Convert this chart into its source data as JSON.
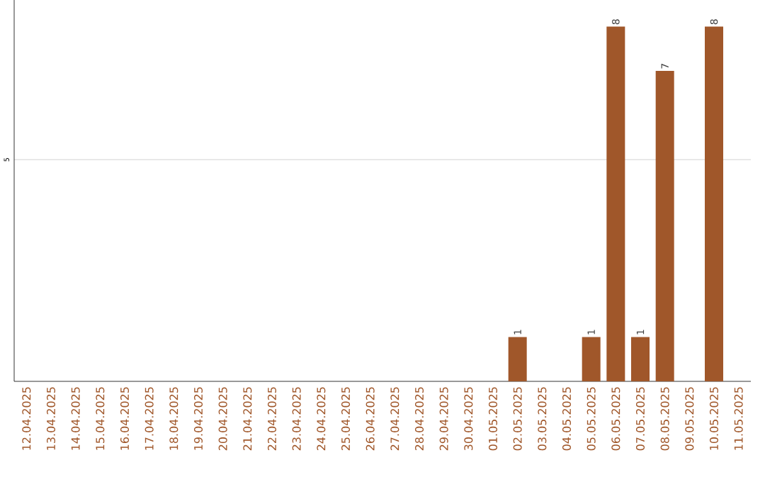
{
  "chart_data": {
    "type": "bar",
    "categories": [
      "12.04.2025",
      "13.04.2025",
      "14.04.2025",
      "15.04.2025",
      "16.04.2025",
      "17.04.2025",
      "18.04.2025",
      "19.04.2025",
      "20.04.2025",
      "21.04.2025",
      "22.04.2025",
      "23.04.2025",
      "24.04.2025",
      "25.04.2025",
      "26.04.2025",
      "27.04.2025",
      "28.04.2025",
      "29.04.2025",
      "30.04.2025",
      "01.05.2025",
      "02.05.2025",
      "03.05.2025",
      "04.05.2025",
      "05.05.2025",
      "06.05.2025",
      "07.05.2025",
      "08.05.2025",
      "09.05.2025",
      "10.05.2025",
      "11.05.2025"
    ],
    "values": [
      null,
      null,
      null,
      null,
      null,
      null,
      null,
      null,
      null,
      null,
      null,
      null,
      null,
      null,
      null,
      null,
      null,
      null,
      null,
      null,
      1,
      null,
      null,
      1,
      8,
      1,
      7,
      null,
      8,
      null
    ],
    "color": "#a0572a",
    "ylim": [
      0,
      8.6
    ],
    "yticks": [
      5
    ],
    "grid": "y",
    "data_labels": true
  }
}
